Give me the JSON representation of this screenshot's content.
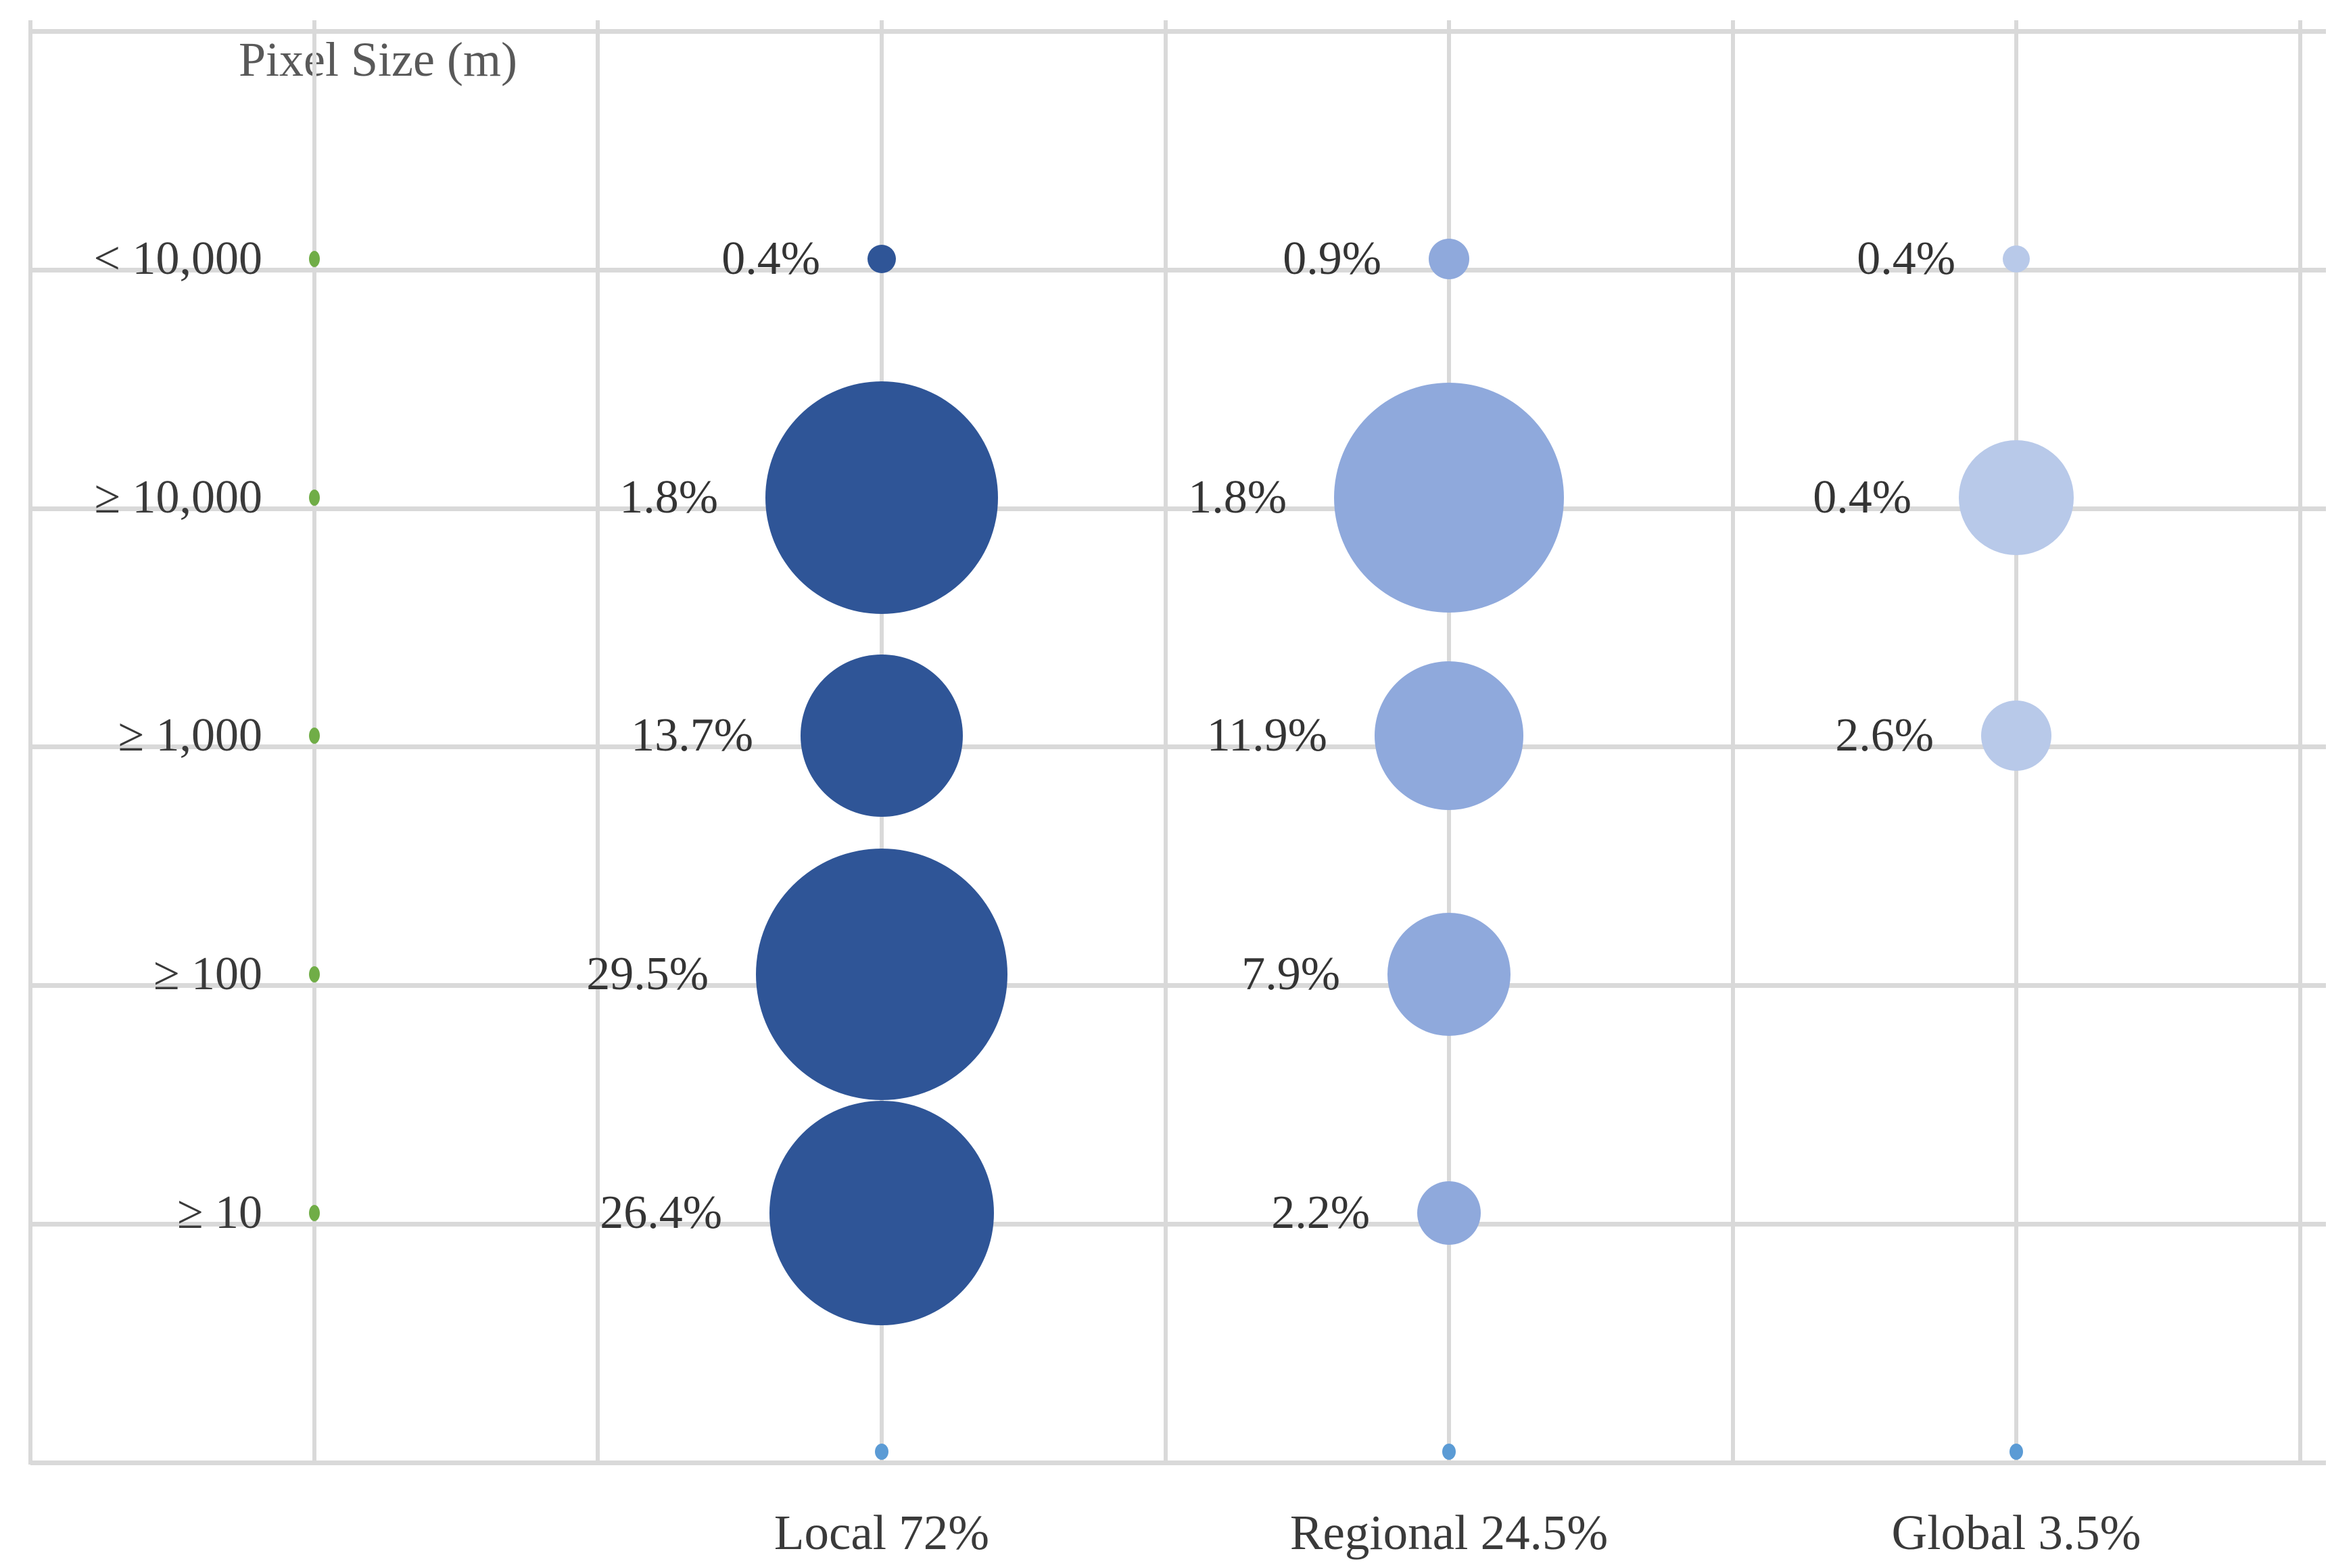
{
  "title": "Pixel Size (m)",
  "colors": {
    "local": "#2F5597",
    "regional": "#8FA9DC",
    "global": "#B8C9E9",
    "axis_green_dot": "#70AD47",
    "bottom_marker_dot": "#5B9BD5",
    "gridline": "#D9D9D9",
    "text": "#3A3A3A",
    "title_text": "#595959"
  },
  "chart_data": {
    "type": "bubble",
    "title": "Pixel Size (m)",
    "y_axis_title": "Pixel Size (m)",
    "y_categories": [
      "< 10,000",
      "≥ 10,000",
      "≥ 1,000",
      "≥ 100",
      "≥ 10"
    ],
    "x_categories": [
      "Local 72%",
      "Regional 24.5%",
      "Global 3.5%"
    ],
    "grid": true,
    "legend_position": "bottom",
    "series": [
      {
        "name": "Local",
        "legend_label": "Local 72%",
        "total_percent": 72,
        "color": "#2F5597",
        "points": [
          {
            "y": "< 10,000",
            "value_percent": 0.4,
            "label": "0.4%",
            "bubble_radius_px": 21
          },
          {
            "y": "≥ 10,000",
            "value_percent": 1.8,
            "label": "1.8%",
            "bubble_radius_px": 172
          },
          {
            "y": "≥ 1,000",
            "value_percent": 13.7,
            "label": "13.7%",
            "bubble_radius_px": 120
          },
          {
            "y": "≥ 100",
            "value_percent": 29.5,
            "label": "29.5%",
            "bubble_radius_px": 186
          },
          {
            "y": "≥ 10",
            "value_percent": 26.4,
            "label": "26.4%",
            "bubble_radius_px": 166
          }
        ]
      },
      {
        "name": "Regional",
        "legend_label": "Regional 24.5%",
        "total_percent": 24.5,
        "color": "#8FA9DC",
        "points": [
          {
            "y": "< 10,000",
            "value_percent": 0.9,
            "label": "0.9%",
            "bubble_radius_px": 30
          },
          {
            "y": "≥ 10,000",
            "value_percent": 1.8,
            "label": "1.8%",
            "bubble_radius_px": 170
          },
          {
            "y": "≥ 1,000",
            "value_percent": 11.9,
            "label": "11.9%",
            "bubble_radius_px": 110
          },
          {
            "y": "≥ 100",
            "value_percent": 7.9,
            "label": "7.9%",
            "bubble_radius_px": 91
          },
          {
            "y": "≥ 10",
            "value_percent": 2.2,
            "label": "2.2%",
            "bubble_radius_px": 47
          }
        ]
      },
      {
        "name": "Global",
        "legend_label": "Global 3.5%",
        "total_percent": 3.5,
        "color": "#B8C9E9",
        "points": [
          {
            "y": "< 10,000",
            "value_percent": 0.4,
            "label": "0.4%",
            "bubble_radius_px": 20
          },
          {
            "y": "≥ 10,000",
            "value_percent": 0.4,
            "label": "0.4%",
            "bubble_radius_px": 85
          },
          {
            "y": "≥ 1,000",
            "value_percent": 2.6,
            "label": "2.6%",
            "bubble_radius_px": 52
          },
          {
            "y": "≥ 100",
            "value_percent": null,
            "label": "",
            "bubble_radius_px": null
          },
          {
            "y": "≥ 10",
            "value_percent": null,
            "label": "",
            "bubble_radius_px": null
          }
        ]
      }
    ],
    "axis_markers": {
      "green_dot_rows": [
        "< 10,000",
        "≥ 10,000",
        "≥ 1,000",
        "≥ 100",
        "≥ 10"
      ],
      "green_dot_color": "#70AD47",
      "bottom_marker_columns": [
        "Local 72%",
        "Regional 24.5%",
        "Global 3.5%"
      ],
      "bottom_marker_color": "#5B9BD5"
    }
  }
}
